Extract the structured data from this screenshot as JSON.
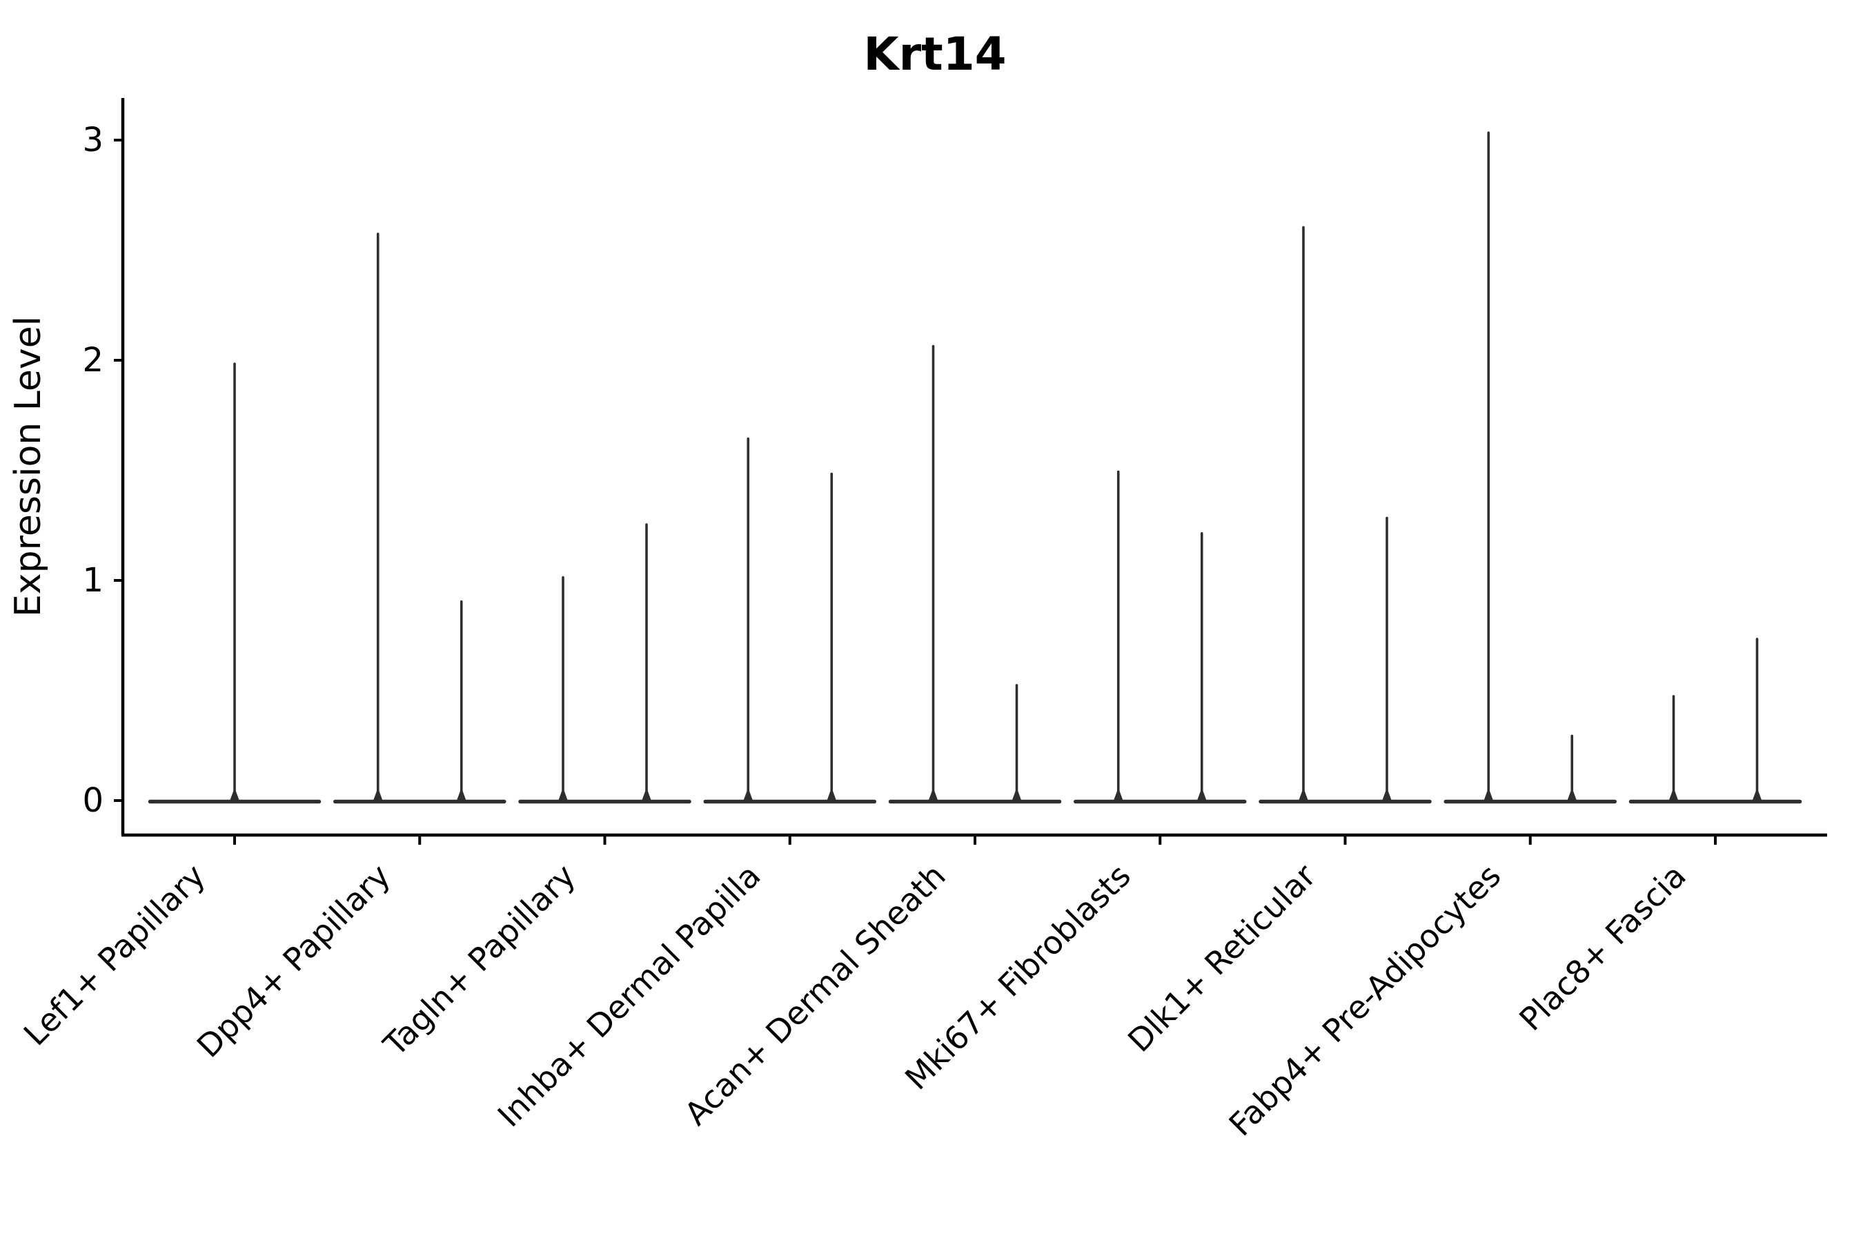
{
  "figure": {
    "background": "#ffffff"
  },
  "chart_data": {
    "type": "violin",
    "title": "Krt14",
    "ylabel": "Expression Level",
    "xlabel": "",
    "yticks": [
      0,
      1,
      2,
      3
    ],
    "ylim": [
      -0.16,
      3.19
    ],
    "grid": false,
    "legend": false,
    "axis_color": "#000000",
    "violin_color": "#2e2e2e",
    "categories": [
      "Lef1+ Papillary",
      "Dpp4+ Papillary",
      "Tagln+ Papillary",
      "Inhba+ Dermal Papilla",
      "Acan+ Dermal Sheath",
      "Mki67+ Fibroblasts",
      "Dlk1+ Reticular",
      "Fabp4+ Pre-Adipocytes",
      "Plac8+ Fascia"
    ],
    "violins": [
      {
        "category": "Lef1+ Papillary",
        "spikes": [
          {
            "position": "center",
            "max_expression": 1.99
          }
        ]
      },
      {
        "category": "Dpp4+ Papillary",
        "spikes": [
          {
            "position": "left",
            "max_expression": 2.58
          },
          {
            "position": "right",
            "max_expression": 0.91
          }
        ]
      },
      {
        "category": "Tagln+ Papillary",
        "spikes": [
          {
            "position": "left",
            "max_expression": 1.02
          },
          {
            "position": "right",
            "max_expression": 1.26
          }
        ]
      },
      {
        "category": "Inhba+ Dermal Papilla",
        "spikes": [
          {
            "position": "left",
            "max_expression": 1.65
          },
          {
            "position": "right",
            "max_expression": 1.49
          }
        ]
      },
      {
        "category": "Acan+ Dermal Sheath",
        "spikes": [
          {
            "position": "left",
            "max_expression": 2.07
          },
          {
            "position": "right",
            "max_expression": 0.53
          }
        ]
      },
      {
        "category": "Mki67+ Fibroblasts",
        "spikes": [
          {
            "position": "left",
            "max_expression": 1.5
          },
          {
            "position": "right",
            "max_expression": 1.22
          }
        ]
      },
      {
        "category": "Dlk1+ Reticular",
        "spikes": [
          {
            "position": "left",
            "max_expression": 2.61
          },
          {
            "position": "right",
            "max_expression": 1.29
          }
        ]
      },
      {
        "category": "Fabp4+ Pre-Adipocytes",
        "spikes": [
          {
            "position": "left",
            "max_expression": 3.04
          },
          {
            "position": "right",
            "max_expression": 0.3
          }
        ]
      },
      {
        "category": "Plac8+ Fascia",
        "spikes": [
          {
            "position": "left",
            "max_expression": 0.48
          },
          {
            "position": "right",
            "max_expression": 0.74
          }
        ]
      }
    ]
  }
}
